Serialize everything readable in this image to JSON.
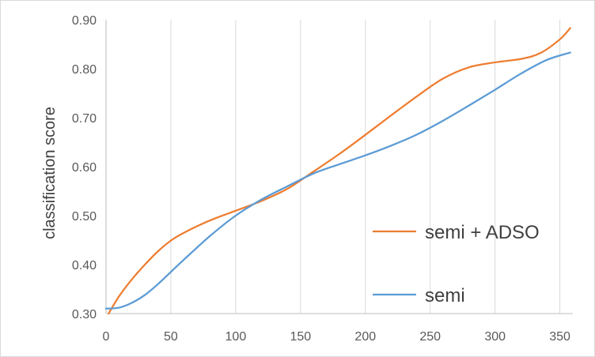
{
  "chart_data": {
    "type": "line",
    "title": "",
    "xlabel": "",
    "ylabel": "classification score",
    "xlim": [
      0,
      360
    ],
    "ylim": [
      0.3,
      0.9
    ],
    "x_ticks": [
      "0",
      "50",
      "100",
      "150",
      "200",
      "250",
      "300",
      "350"
    ],
    "y_ticks": [
      "0.30",
      "0.40",
      "0.50",
      "0.60",
      "0.70",
      "0.80",
      "0.90"
    ],
    "grid": "vertical",
    "legend_position": "bottom-right",
    "series": [
      {
        "name": "semi + ADSO",
        "color": "#ED7D31",
        "x": [
          2,
          10,
          20,
          30,
          40,
          50,
          60,
          80,
          100,
          120,
          140,
          160,
          180,
          200,
          220,
          240,
          260,
          280,
          300,
          320,
          335,
          350,
          358
        ],
        "y": [
          0.3,
          0.335,
          0.37,
          0.4,
          0.427,
          0.449,
          0.465,
          0.49,
          0.51,
          0.53,
          0.555,
          0.59,
          0.626,
          0.665,
          0.705,
          0.744,
          0.78,
          0.803,
          0.813,
          0.82,
          0.832,
          0.86,
          0.883
        ]
      },
      {
        "name": "semi",
        "color": "#5B9BD5",
        "x": [
          0,
          10,
          20,
          30,
          40,
          50,
          60,
          80,
          100,
          120,
          140,
          160,
          180,
          200,
          220,
          240,
          260,
          280,
          300,
          320,
          340,
          358
        ],
        "y": [
          0.31,
          0.312,
          0.322,
          0.338,
          0.36,
          0.385,
          0.41,
          0.458,
          0.5,
          0.533,
          0.56,
          0.586,
          0.605,
          0.623,
          0.643,
          0.666,
          0.694,
          0.725,
          0.757,
          0.79,
          0.818,
          0.833
        ]
      }
    ]
  }
}
